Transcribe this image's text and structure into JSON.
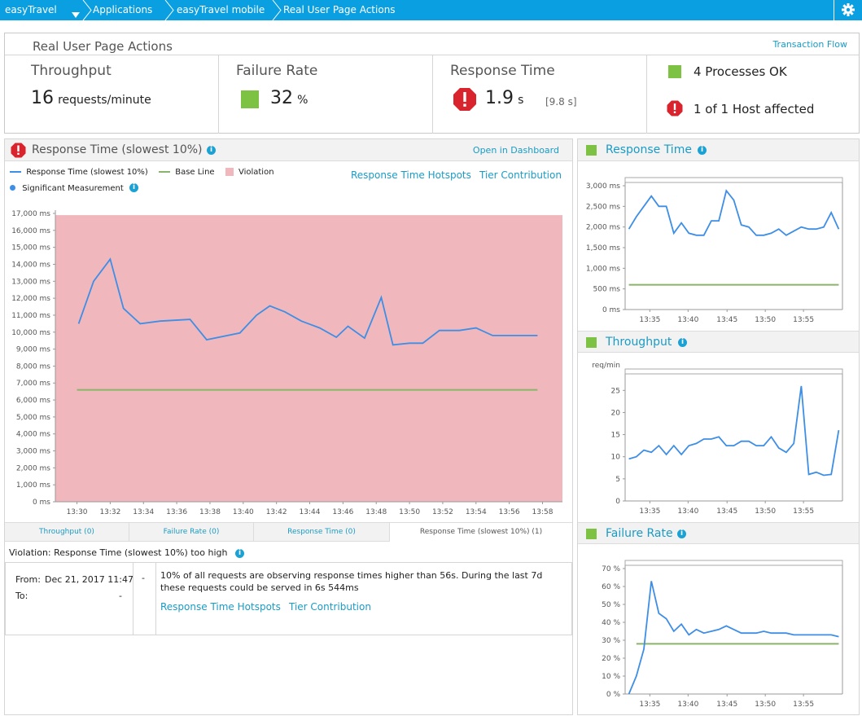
{
  "breadcrumb": {
    "items": [
      {
        "label": "easyTravel"
      },
      {
        "label": "Applications"
      },
      {
        "label": "easyTravel mobile"
      },
      {
        "label": "Real User Page Actions"
      }
    ]
  },
  "icons": {
    "settings": "gear-icon",
    "dropdown": "caret-down-icon",
    "error": "error-octagon-icon",
    "info": "info-icon",
    "ok": "green-square-icon"
  },
  "colors": {
    "nav": "#0a9fe0",
    "ok": "#7dc242",
    "error": "#d9232d",
    "link": "#1b9bc4",
    "line": "#3e8ee6",
    "baseline": "#8ab46a",
    "violation": "#f0b8bd"
  },
  "summary": {
    "title": "Real User Page Actions",
    "transaction_flow": "Transaction Flow",
    "throughput": {
      "label": "Throughput",
      "value": "16",
      "unit": "requests/minute"
    },
    "failure_rate": {
      "label": "Failure Rate",
      "value": "32",
      "unit": "%"
    },
    "response_time": {
      "label": "Response Time",
      "value": "1.9",
      "unit": "s",
      "extra": "[9.8 s]"
    },
    "health": {
      "processes": "4 Processes OK",
      "hosts": "1 of 1 Host affected"
    }
  },
  "main_panel": {
    "title": "Response Time (slowest 10%)",
    "open_dashboard": "Open in Dashboard",
    "legend": {
      "series": "Response Time (slowest 10%)",
      "baseline": "Base Line",
      "violation": "Violation",
      "significant": "Significant Measurement"
    },
    "links": {
      "hotspots": "Response Time Hotspots",
      "tier": "Tier Contribution"
    },
    "tabs": [
      {
        "label": "Throughput (0)"
      },
      {
        "label": "Failure Rate (0)"
      },
      {
        "label": "Response Time (0)"
      },
      {
        "label": "Response Time (slowest 10%) (1)"
      }
    ],
    "violation": {
      "title": "Violation: Response Time (slowest 10%) too high",
      "from_label": "From:",
      "from_value": "Dec 21, 2017 11:47",
      "to_label": "To:",
      "to_value": "-",
      "dash": "-",
      "text": "10% of all requests are observing response times higher than 56s. During the last 7d these requests could be served in 6s 544ms",
      "hotspots": "Response Time Hotspots",
      "tier": "Tier Contribution"
    }
  },
  "side_panels": {
    "response_time": {
      "title": "Response Time"
    },
    "throughput": {
      "title": "Throughput"
    },
    "failure_rate": {
      "title": "Failure Rate"
    }
  },
  "chart_data": [
    {
      "type": "line",
      "title": "Response Time (slowest 10%)",
      "x_ticks": [
        "13:30",
        "13:32",
        "13:34",
        "13:36",
        "13:38",
        "13:40",
        "13:42",
        "13:44",
        "13:46",
        "13:48",
        "13:50",
        "13:52",
        "13:54",
        "13:56",
        "13:58"
      ],
      "y_ticks": [
        "0 ms",
        "1,000 ms",
        "2,000 ms",
        "3,000 ms",
        "4,000 ms",
        "5,000 ms",
        "6,000 ms",
        "7,000 ms",
        "8,000 ms",
        "9,000 ms",
        "10,000 ms",
        "11,000 ms",
        "12,000 ms",
        "13,000 ms",
        "14,000 ms",
        "15,000 ms",
        "16,000 ms",
        "17,000 ms"
      ],
      "xlim": [
        0,
        28.5
      ],
      "ylim": [
        0,
        17000
      ],
      "violation_band": [
        0,
        16900
      ],
      "baseline": 6600,
      "series": [
        {
          "name": "Response Time (slowest 10%)",
          "x": [
            0.1,
            1,
            2,
            2.8,
            3.8,
            5,
            6.8,
            7.8,
            9.8,
            10.8,
            11.6,
            12.5,
            13.5,
            14.6,
            15.6,
            16.3,
            17.3,
            18.3,
            19,
            20,
            20.8,
            21.8,
            23,
            24,
            25,
            26,
            27,
            27.7
          ],
          "y": [
            10500,
            13000,
            14300,
            11400,
            10500,
            10650,
            10750,
            9550,
            9950,
            11000,
            11550,
            11200,
            10650,
            10250,
            9700,
            10350,
            9650,
            12050,
            9250,
            9350,
            9350,
            10100,
            10100,
            10250,
            9800,
            9800,
            9800,
            9800
          ]
        }
      ]
    },
    {
      "type": "line",
      "title": "Response Time",
      "x_ticks": [
        "13:35",
        "13:40",
        "13:45",
        "13:50",
        "13:55"
      ],
      "y_ticks": [
        "0 ms",
        "500 ms",
        "1,000 ms",
        "1,500 ms",
        "2,000 ms",
        "2,500 ms",
        "3,000 ms"
      ],
      "ylim": [
        0,
        3000
      ],
      "baseline": 600,
      "series": [
        {
          "x": [
            0,
            1,
            2,
            3,
            4,
            5,
            6,
            7,
            8,
            9,
            10,
            11,
            12,
            13,
            14,
            15,
            16,
            17,
            18,
            19,
            20,
            21,
            22,
            23,
            24,
            25,
            26,
            27,
            28
          ],
          "y": [
            1950,
            2250,
            2500,
            2750,
            2500,
            2500,
            1850,
            2100,
            1850,
            1800,
            1800,
            2150,
            2150,
            2880,
            2650,
            2050,
            2000,
            1800,
            1800,
            1850,
            1950,
            1800,
            1900,
            2000,
            1950,
            1950,
            2000,
            2350,
            1950
          ]
        }
      ]
    },
    {
      "type": "line",
      "title": "Throughput",
      "ylabel": "req/min",
      "x_ticks": [
        "13:35",
        "13:40",
        "13:45",
        "13:50",
        "13:55"
      ],
      "y_ticks": [
        "0",
        "5",
        "10",
        "15",
        "20",
        "25"
      ],
      "ylim": [
        0,
        28
      ],
      "series": [
        {
          "x": [
            0,
            1,
            2,
            3,
            4,
            5,
            6,
            7,
            8,
            9,
            10,
            11,
            12,
            13,
            14,
            15,
            16,
            17,
            18,
            19,
            20,
            21,
            22,
            23,
            24,
            25,
            26,
            27,
            28
          ],
          "y": [
            9.5,
            10,
            11.5,
            11,
            12.5,
            10.5,
            12.5,
            10.5,
            12.5,
            13,
            14,
            14,
            14.5,
            12.5,
            12.5,
            13.5,
            13.5,
            12.5,
            12.5,
            14.5,
            12,
            11,
            13,
            26,
            6,
            6.5,
            5.8,
            6,
            16
          ]
        }
      ]
    },
    {
      "type": "line",
      "title": "Failure Rate",
      "x_ticks": [
        "13:35",
        "13:40",
        "13:45",
        "13:50",
        "13:55"
      ],
      "y_ticks": [
        "0 %",
        "10 %",
        "20 %",
        "30 %",
        "40 %",
        "50 %",
        "60 %",
        "70 %"
      ],
      "ylim": [
        0,
        70
      ],
      "baseline": 28,
      "series": [
        {
          "x": [
            0,
            1,
            2,
            3,
            4,
            5,
            6,
            7,
            8,
            9,
            10,
            11,
            12,
            13,
            14,
            15,
            16,
            17,
            18,
            19,
            20,
            21,
            22,
            23,
            24,
            25,
            26,
            27,
            28
          ],
          "y": [
            0,
            10,
            25,
            63,
            45,
            42,
            35,
            39,
            33,
            36,
            34,
            35,
            36,
            38,
            36,
            34,
            34,
            34,
            35,
            34,
            34,
            34,
            33,
            33,
            33,
            33,
            33,
            33,
            32
          ]
        }
      ]
    }
  ]
}
